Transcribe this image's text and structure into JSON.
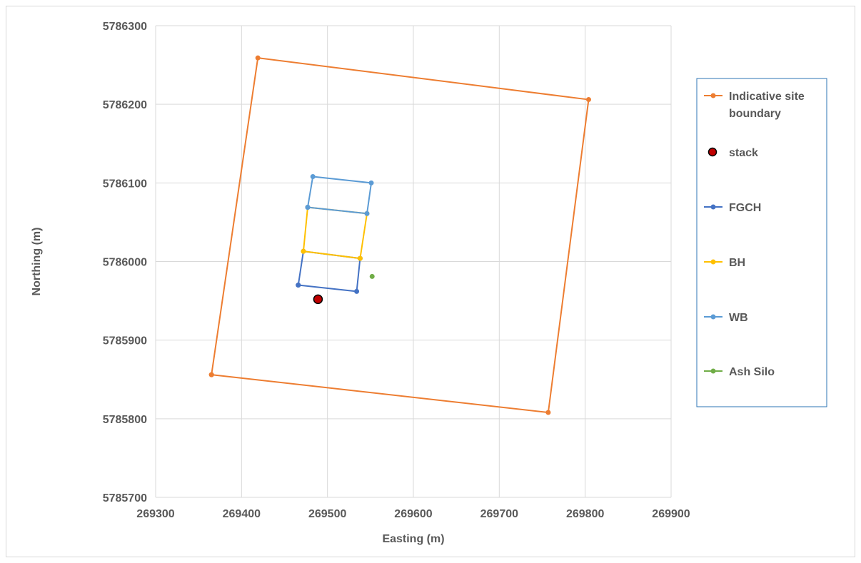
{
  "chart_data": {
    "type": "scatter",
    "title": "",
    "xlabel": "Easting (m)",
    "ylabel": "Northing (m)",
    "xlim": [
      269300,
      269900
    ],
    "ylim": [
      5785700,
      5786300
    ],
    "x_ticks": [
      269300,
      269400,
      269500,
      269600,
      269700,
      269800,
      269900
    ],
    "y_ticks": [
      5785700,
      5785800,
      5785900,
      5786000,
      5786100,
      5786200,
      5786300
    ],
    "grid": true,
    "legend_position": "right",
    "series": [
      {
        "name": "Indicative site boundary",
        "legend_lines": [
          "Indicative site",
          "boundary"
        ],
        "color": "#ed7d31",
        "kind": "line",
        "points": [
          [
            269365,
            5785856
          ],
          [
            269419,
            5786259
          ],
          [
            269804,
            5786206
          ],
          [
            269757,
            5785808
          ],
          [
            269365,
            5785856
          ]
        ]
      },
      {
        "name": "stack",
        "legend_lines": [
          "stack"
        ],
        "color": "#c00000",
        "kind": "marker",
        "points": [
          [
            269489,
            5785952
          ]
        ]
      },
      {
        "name": "FGCH",
        "legend_lines": [
          "FGCH"
        ],
        "color": "#4472c4",
        "kind": "line",
        "points": [
          [
            269466,
            5785970
          ],
          [
            269472,
            5786013
          ],
          [
            269538,
            5786004
          ],
          [
            269534,
            5785962
          ],
          [
            269466,
            5785970
          ]
        ]
      },
      {
        "name": "BH",
        "legend_lines": [
          "BH"
        ],
        "color": "#ffc000",
        "kind": "line",
        "points": [
          [
            269472,
            5786013
          ],
          [
            269477,
            5786069
          ],
          [
            269546,
            5786061
          ],
          [
            269538,
            5786004
          ],
          [
            269472,
            5786013
          ]
        ]
      },
      {
        "name": "WB",
        "legend_lines": [
          "WB"
        ],
        "color": "#5b9bd5",
        "kind": "line",
        "points": [
          [
            269477,
            5786069
          ],
          [
            269483,
            5786108
          ],
          [
            269551,
            5786100
          ],
          [
            269546,
            5786061
          ],
          [
            269477,
            5786069
          ]
        ]
      },
      {
        "name": "Ash Silo",
        "legend_lines": [
          "Ash Silo"
        ],
        "color": "#70ad47",
        "kind": "point",
        "points": [
          [
            269552,
            5785981
          ]
        ]
      }
    ]
  }
}
